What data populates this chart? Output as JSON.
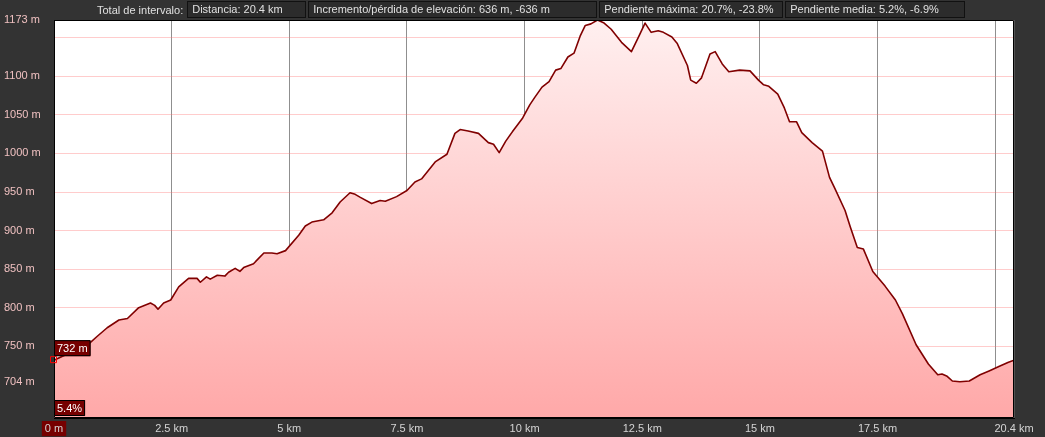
{
  "chart_data": {
    "type": "area",
    "title": "Total de intervalo:",
    "annotations": [
      "Distancia: 20.4 km",
      "Incremento/pérdida de elevación: 636 m, -636 m",
      "Pendiente máxima: 20.7%, -23.8%",
      "Pendiente media: 5.2%, -6.9%",
      {
        "text": "732 m",
        "x": 0,
        "y": 732
      },
      {
        "text": "5.4%",
        "x": 0
      }
    ],
    "x": [
      0,
      0.74,
      0.92,
      1.13,
      1.38,
      1.56,
      1.8,
      2.05,
      2.14,
      2.21,
      2.33,
      2.48,
      2.65,
      2.86,
      3.04,
      3.11,
      3.24,
      3.32,
      3.47,
      3.63,
      3.71,
      3.85,
      3.95,
      4.03,
      4.24,
      4.46,
      4.63,
      4.74,
      4.92,
      5.2,
      5.34,
      5.48,
      5.73,
      5.91,
      6.08,
      6.29,
      6.4,
      6.51,
      6.75,
      6.93,
      7.04,
      7.28,
      7.5,
      7.67,
      7.81,
      8.1,
      8.35,
      8.52,
      8.63,
      8.8,
      9.02,
      9.23,
      9.34,
      9.46,
      9.6,
      9.74,
      9.96,
      10.11,
      10.22,
      10.37,
      10.52,
      10.66,
      10.77,
      10.92,
      11.05,
      11.18,
      11.29,
      11.41,
      11.55,
      11.69,
      11.84,
      12.06,
      12.27,
      12.43,
      12.56,
      12.69,
      12.84,
      12.95,
      13.13,
      13.24,
      13.46,
      13.53,
      13.65,
      13.76,
      13.94,
      14.05,
      14.2,
      14.34,
      14.57,
      14.79,
      14.97,
      15.08,
      15.19,
      15.38,
      15.52,
      15.63,
      15.78,
      15.89,
      16.11,
      16.33,
      16.48,
      16.59,
      16.81,
      16.92,
      17.07,
      17.2,
      17.4,
      17.66,
      17.88,
      18.03,
      18.32,
      18.58,
      18.78,
      18.87,
      18.98,
      19.09,
      19.25,
      19.45,
      19.68,
      19.87,
      20.09,
      20.27,
      20.4
    ],
    "values": [
      732,
      753,
      763,
      774,
      784,
      786,
      800,
      806,
      803,
      798,
      806,
      810,
      827,
      838,
      838,
      833,
      840,
      837,
      842,
      841,
      846,
      851,
      847,
      852,
      857,
      871,
      871,
      870,
      874,
      894,
      906,
      911,
      914,
      923,
      937,
      949,
      947,
      943,
      935,
      939,
      938,
      944,
      952,
      963,
      967,
      989,
      999,
      1026,
      1031,
      1029,
      1026,
      1014,
      1012,
      1001,
      1016,
      1028,
      1046,
      1063,
      1073,
      1086,
      1093,
      1108,
      1110,
      1125,
      1130,
      1152,
      1166,
      1168,
      1173,
      1169,
      1161,
      1144,
      1132,
      1152,
      1169,
      1157,
      1159,
      1157,
      1151,
      1143,
      1114,
      1095,
      1091,
      1098,
      1129,
      1132,
      1116,
      1106,
      1108,
      1107,
      1095,
      1089,
      1087,
      1077,
      1059,
      1041,
      1041,
      1027,
      1014,
      1003,
      969,
      955,
      926,
      905,
      878,
      876,
      847,
      828,
      810,
      792,
      752,
      727,
      713,
      714,
      711,
      705,
      704,
      705,
      713,
      718,
      724,
      729,
      732
    ],
    "color": "#800000",
    "xlim": [
      0,
      20.4
    ],
    "xticks": [
      {
        "value": 0,
        "label": "0 m"
      },
      {
        "value": 2.5,
        "label": "2.5 km"
      },
      {
        "value": 5,
        "label": "5 km"
      },
      {
        "value": 7.5,
        "label": "7.5 km"
      },
      {
        "value": 10,
        "label": "10 km"
      },
      {
        "value": 12.5,
        "label": "12.5 km"
      },
      {
        "value": 15,
        "label": "15 km"
      },
      {
        "value": 17.5,
        "label": "17.5 km"
      },
      {
        "value": 20,
        "label": null
      },
      {
        "value": 20.4,
        "label": "20.4 km"
      }
    ],
    "ylim": [
      657,
      1173
    ],
    "yticks": [
      {
        "value": 704,
        "label": "704 m"
      },
      {
        "value": 750,
        "label": "750 m"
      },
      {
        "value": 800,
        "label": "800 m"
      },
      {
        "value": 850,
        "label": "850 m"
      },
      {
        "value": 900,
        "label": "900 m"
      },
      {
        "value": 950,
        "label": "950 m"
      },
      {
        "value": 1000,
        "label": "1000 m"
      },
      {
        "value": 1050,
        "label": "1050 m"
      },
      {
        "value": 1100,
        "label": "1100 m"
      },
      {
        "value": 1150,
        "label": null
      },
      {
        "value": 1173,
        "label": "1173 m"
      }
    ],
    "grid": true
  }
}
